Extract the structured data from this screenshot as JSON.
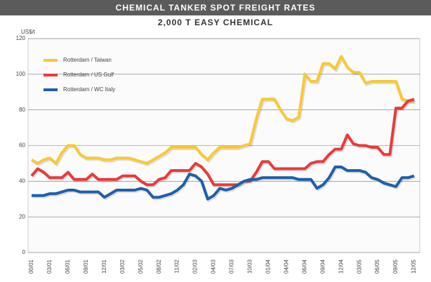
{
  "chart_data": {
    "type": "line",
    "title": "CHEMICAL TANKER SPOT FREIGHT RATES",
    "subtitle": "2,000 T EASY CHEMICAL",
    "y_label": "US$/t",
    "categories": [
      "00/01",
      null,
      null,
      "03/01",
      null,
      null,
      "06/01",
      null,
      null,
      "09/01",
      null,
      null,
      "12/01",
      null,
      null,
      "03/02",
      null,
      null,
      "05/02",
      null,
      null,
      "08/02",
      null,
      null,
      "11/02",
      null,
      null,
      "02/03",
      null,
      null,
      "04/03",
      null,
      null,
      "07/03",
      null,
      null,
      "10/03",
      null,
      null,
      "01/04",
      null,
      null,
      "04/04",
      null,
      null,
      "06/04",
      null,
      null,
      "09/04",
      null,
      null,
      "12/04",
      null,
      null,
      "03/05",
      null,
      null,
      "06/05",
      null,
      null,
      "09/05",
      null,
      null,
      "12/05"
    ],
    "series": [
      {
        "name": "Rotterdam / Taiwan",
        "color": "#f7c936",
        "values": [
          52,
          50,
          52,
          53,
          50,
          56,
          60,
          60,
          55,
          53,
          53,
          53,
          52,
          52,
          53,
          53,
          53,
          52,
          51,
          50,
          52,
          54,
          56,
          59,
          59,
          59,
          59,
          59,
          55,
          52,
          56,
          59,
          59,
          59,
          59,
          60,
          61,
          75,
          86,
          86,
          86,
          80,
          75,
          74,
          76,
          100,
          96,
          96,
          106,
          106,
          103,
          110,
          104,
          101,
          101,
          95,
          96,
          96,
          96,
          96,
          96,
          86,
          85,
          85
        ]
      },
      {
        "name": "Rotterdam / US Gulf",
        "color": "#e63b3b",
        "values": [
          43,
          47,
          45,
          42,
          42,
          42,
          45,
          41,
          41,
          41,
          44,
          41,
          41,
          41,
          41,
          43,
          43,
          43,
          40,
          38,
          38,
          41,
          42,
          46,
          46,
          46,
          46,
          50,
          48,
          44,
          38,
          38,
          38,
          38,
          38,
          40,
          40,
          45,
          51,
          51,
          47,
          47,
          47,
          47,
          47,
          47,
          50,
          51,
          51,
          55,
          58,
          58,
          66,
          61,
          60,
          60,
          59,
          59,
          55,
          55,
          81,
          81,
          85,
          86
        ]
      },
      {
        "name": "Rotterdam / WC Italy",
        "color": "#1f5fa8",
        "values": [
          32,
          32,
          32,
          33,
          33,
          34,
          35,
          35,
          34,
          34,
          34,
          34,
          31,
          33,
          35,
          35,
          35,
          35,
          36,
          35,
          31,
          31,
          32,
          33,
          35,
          38,
          44,
          43,
          40,
          30,
          32,
          36,
          35,
          36,
          38,
          40,
          41,
          41,
          42,
          42,
          42,
          42,
          42,
          42,
          41,
          41,
          41,
          36,
          38,
          42,
          48,
          48,
          46,
          46,
          46,
          45,
          42,
          41,
          39,
          38,
          37,
          42,
          42,
          43
        ]
      }
    ],
    "ylim": [
      0,
      120
    ],
    "yticks": [
      0,
      20,
      40,
      60,
      80,
      100,
      120
    ],
    "grid": true,
    "legend": "upper left"
  }
}
